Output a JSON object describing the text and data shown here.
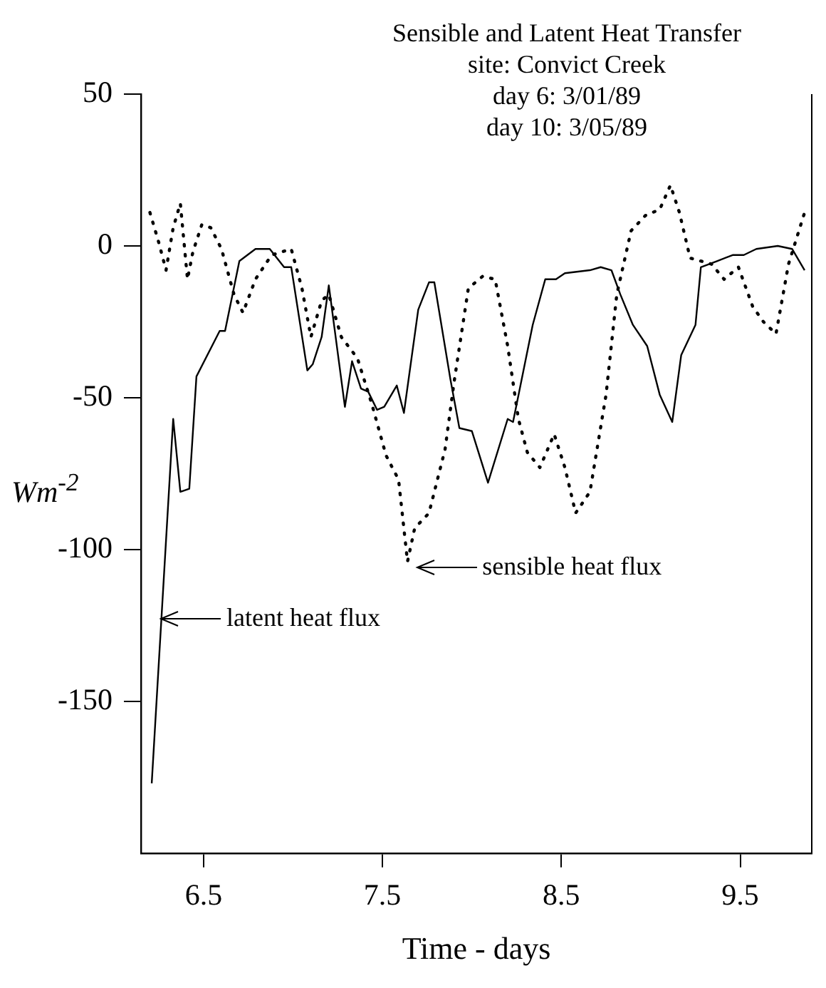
{
  "chart_data": {
    "type": "line",
    "title": "Sensible and Latent Heat Transfer",
    "subtitle": "site: Convict Creek\nday 6: 3/01/89\nday 10: 3/05/89",
    "xlabel": "Time - days",
    "ylabel": "Wm$^{-2}$",
    "xlim": [
      6.15,
      9.9
    ],
    "xticks": [
      6.5,
      7.5,
      8.5,
      9.5
    ],
    "ylim": [
      -200,
      50
    ],
    "yticks": [
      50,
      0,
      -50,
      -100,
      -150
    ],
    "grid": false,
    "legend": false,
    "marker": "none",
    "series": [
      {
        "color": "#000000",
        "line_style": "solid",
        "x": [
          6.21,
          6.33,
          6.37,
          6.42,
          6.46,
          6.59,
          6.62,
          6.7,
          6.79,
          6.87,
          6.95,
          6.99,
          7.08,
          7.11,
          7.16,
          7.2,
          7.29,
          7.33,
          7.38,
          7.42,
          7.47,
          7.51,
          7.58,
          7.62,
          7.7,
          7.76,
          7.79,
          7.88,
          7.93,
          8.0,
          8.09,
          8.2,
          8.23,
          8.34,
          8.41,
          8.47,
          8.52,
          8.66,
          8.72,
          8.78,
          8.83,
          8.9,
          8.98,
          9.05,
          9.12,
          9.17,
          9.25,
          9.28,
          9.37,
          9.46,
          9.52,
          9.59,
          9.71,
          9.79,
          9.86
        ],
        "values": [
          -177,
          -57,
          -81,
          -80,
          -43,
          -28,
          -28,
          -5,
          -1,
          -1,
          -7,
          -7,
          -41,
          -39,
          -30,
          -13,
          -53,
          -38,
          -47,
          -48,
          -54,
          -53,
          -46,
          -55,
          -21,
          -12,
          -12,
          -44,
          -60,
          -61,
          -78,
          -57,
          -58,
          -26,
          -11,
          -11,
          -9,
          -8,
          -7,
          -8,
          -16,
          -26,
          -33,
          -49,
          -58,
          -36,
          -26,
          -7,
          -5,
          -3,
          -3,
          -1,
          0,
          -1,
          -8
        ]
      },
      {
        "color": "#000000",
        "line_style": "dotted",
        "x": [
          6.2,
          6.25,
          6.29,
          6.33,
          6.37,
          6.41,
          6.44,
          6.49,
          6.54,
          6.6,
          6.67,
          6.72,
          6.79,
          6.88,
          6.99,
          7.05,
          7.1,
          7.16,
          7.2,
          7.27,
          7.36,
          7.44,
          7.52,
          7.59,
          7.64,
          7.68,
          7.76,
          7.85,
          7.9,
          7.98,
          8.06,
          8.13,
          8.2,
          8.26,
          8.31,
          8.38,
          8.46,
          8.52,
          8.58,
          8.66,
          8.75,
          8.81,
          8.89,
          8.97,
          9.05,
          9.11,
          9.16,
          9.22,
          9.34,
          9.41,
          9.49,
          9.57,
          9.63,
          9.7,
          9.77,
          9.86
        ],
        "values": [
          11,
          1,
          -8,
          6,
          14,
          -11,
          -2,
          7,
          6,
          -1,
          -16,
          -22,
          -11,
          -3,
          -1,
          -14,
          -30,
          -18,
          -16,
          -30,
          -37,
          -52,
          -69,
          -77,
          -104,
          -93,
          -88,
          -67,
          -45,
          -14,
          -10,
          -11,
          -33,
          -57,
          -68,
          -73,
          -62,
          -73,
          -88,
          -81,
          -49,
          -16,
          5,
          10,
          12,
          20,
          11,
          -4,
          -6,
          -11,
          -7,
          -20,
          -25,
          -29,
          -6,
          11
        ]
      }
    ],
    "annotations": [
      {
        "text": "sensible heat flux",
        "x": 7.66,
        "y": -106
      },
      {
        "text": "latent heat flux",
        "x": 6.23,
        "y": -123
      }
    ]
  }
}
